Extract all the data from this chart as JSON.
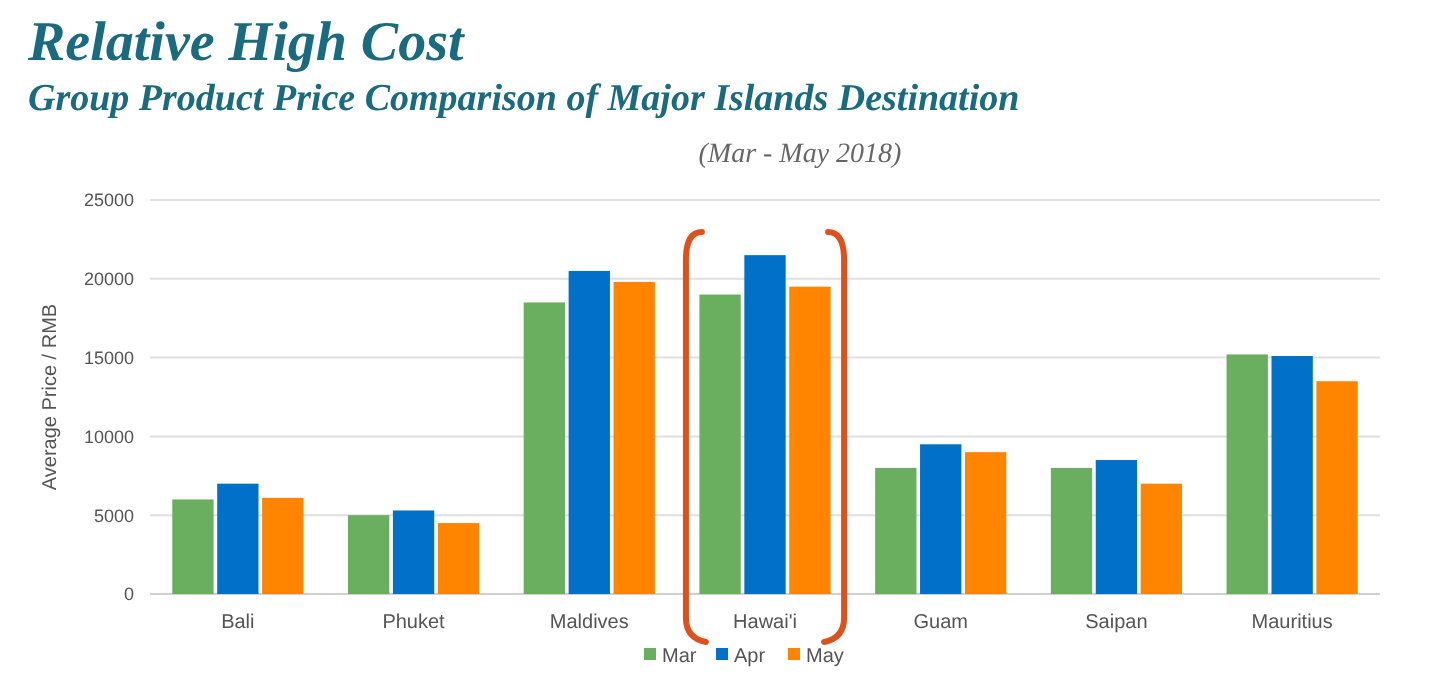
{
  "chart_data": {
    "type": "bar",
    "title": "Relative High Cost",
    "subtitle": "Group Product Price Comparison of Major Islands Destination",
    "annotations": [
      "(Mar - May 2018)"
    ],
    "ylabel": "Average Price / RMB",
    "categories": [
      "Bali",
      "Phuket",
      "Maldives",
      "Hawai'i",
      "Guam",
      "Saipan",
      "Mauritius"
    ],
    "series": [
      {
        "name": "Mar",
        "color": "#6aaf5f",
        "values": [
          6000,
          5000,
          18500,
          19000,
          8000,
          8000,
          15200
        ]
      },
      {
        "name": "Apr",
        "color": "#0070c8",
        "values": [
          7000,
          5300,
          20500,
          21500,
          9500,
          8500,
          15100
        ]
      },
      {
        "name": "May",
        "color": "#ff8400",
        "values": [
          6100,
          4500,
          19800,
          19500,
          9000,
          7000,
          13500
        ]
      }
    ],
    "ylim": [
      0,
      25000
    ],
    "yticks": [
      0,
      5000,
      10000,
      15000,
      20000,
      25000
    ],
    "grid": "y",
    "legend": "bottom"
  }
}
